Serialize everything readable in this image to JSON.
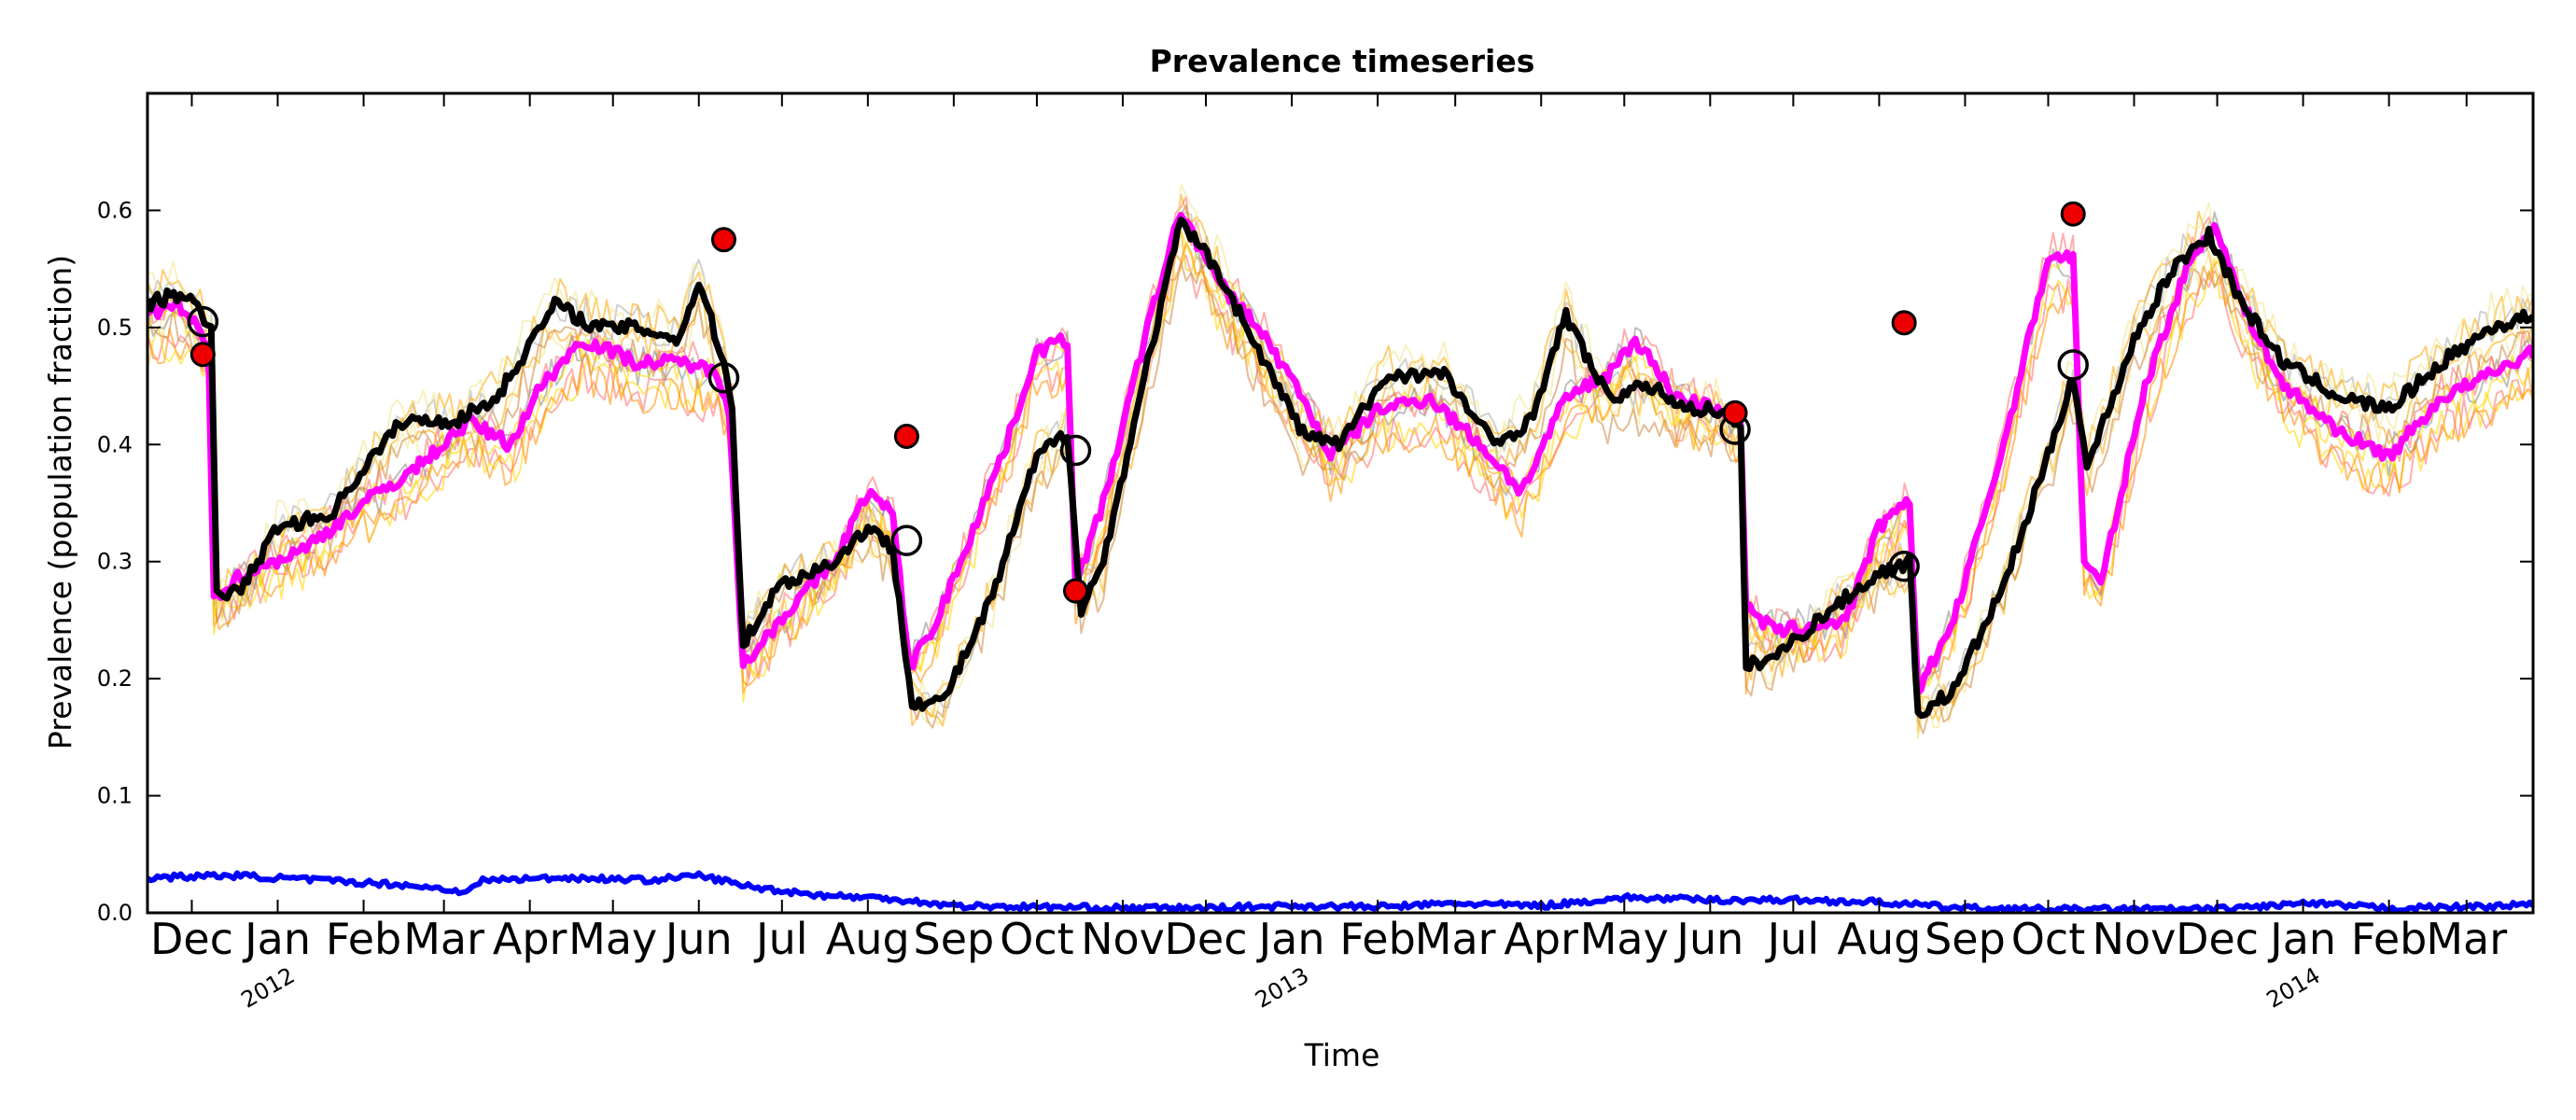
{
  "chart_data": {
    "type": "line",
    "title": "Prevalence timeseries",
    "xlabel": "Time",
    "ylabel": "Prevalence (population fraction)",
    "x_range": [
      "2011-11-15",
      "2014-03-25"
    ],
    "ylim": [
      0.0,
      0.7
    ],
    "y_ticks": [
      0.0,
      0.1,
      0.2,
      0.3,
      0.4,
      0.5,
      0.6
    ],
    "y_tick_labels": [
      "0.0",
      "0.1",
      "0.2",
      "0.3",
      "0.4",
      "0.5",
      "0.6"
    ],
    "month_ticks": [
      {
        "date": "2011-12-01",
        "label": "Dec"
      },
      {
        "date": "2012-01-01",
        "label": "Jan"
      },
      {
        "date": "2012-02-01",
        "label": "Feb"
      },
      {
        "date": "2012-03-01",
        "label": "Mar"
      },
      {
        "date": "2012-04-01",
        "label": "Apr"
      },
      {
        "date": "2012-05-01",
        "label": "May"
      },
      {
        "date": "2012-06-01",
        "label": "Jun"
      },
      {
        "date": "2012-07-01",
        "label": "Jul"
      },
      {
        "date": "2012-08-01",
        "label": "Aug"
      },
      {
        "date": "2012-09-01",
        "label": "Sep"
      },
      {
        "date": "2012-10-01",
        "label": "Oct"
      },
      {
        "date": "2012-11-01",
        "label": "Nov"
      },
      {
        "date": "2012-12-01",
        "label": "Dec"
      },
      {
        "date": "2013-01-01",
        "label": "Jan"
      },
      {
        "date": "2013-02-01",
        "label": "Feb"
      },
      {
        "date": "2013-03-01",
        "label": "Mar"
      },
      {
        "date": "2013-04-01",
        "label": "Apr"
      },
      {
        "date": "2013-05-01",
        "label": "May"
      },
      {
        "date": "2013-06-01",
        "label": "Jun"
      },
      {
        "date": "2013-07-01",
        "label": "Jul"
      },
      {
        "date": "2013-08-01",
        "label": "Aug"
      },
      {
        "date": "2013-09-01",
        "label": "Sep"
      },
      {
        "date": "2013-10-01",
        "label": "Oct"
      },
      {
        "date": "2013-11-01",
        "label": "Nov"
      },
      {
        "date": "2013-12-01",
        "label": "Dec"
      },
      {
        "date": "2014-01-01",
        "label": "Jan"
      },
      {
        "date": "2014-02-01",
        "label": "Feb"
      },
      {
        "date": "2014-03-01",
        "label": "Mar"
      }
    ],
    "year_ticks": [
      {
        "date": "2012-01-01",
        "label": "2012"
      },
      {
        "date": "2013-01-01",
        "label": "2013"
      },
      {
        "date": "2014-01-01",
        "label": "2014"
      }
    ],
    "grid": false,
    "legend": "none",
    "series": [
      {
        "role": "magenta",
        "color": "#ff00ff",
        "points": [
          [
            "2011-11-15",
            0.51
          ],
          [
            "2011-11-25",
            0.52
          ],
          [
            "2011-12-03",
            0.5
          ],
          [
            "2011-12-07",
            0.48
          ],
          [
            "2011-12-09",
            0.27
          ],
          [
            "2011-12-20",
            0.29
          ],
          [
            "2012-01-10",
            0.31
          ],
          [
            "2012-02-01",
            0.35
          ],
          [
            "2012-02-20",
            0.38
          ],
          [
            "2012-03-10",
            0.42
          ],
          [
            "2012-03-25",
            0.4
          ],
          [
            "2012-04-05",
            0.45
          ],
          [
            "2012-04-20",
            0.49
          ],
          [
            "2012-05-10",
            0.47
          ],
          [
            "2012-05-28",
            0.47
          ],
          [
            "2012-06-08",
            0.46
          ],
          [
            "2012-06-12",
            0.43
          ],
          [
            "2012-06-17",
            0.21
          ],
          [
            "2012-06-30",
            0.25
          ],
          [
            "2012-07-20",
            0.3
          ],
          [
            "2012-08-01",
            0.36
          ],
          [
            "2012-08-10",
            0.34
          ],
          [
            "2012-08-16",
            0.21
          ],
          [
            "2012-08-26",
            0.25
          ],
          [
            "2012-09-20",
            0.4
          ],
          [
            "2012-10-01",
            0.48
          ],
          [
            "2012-10-12",
            0.49
          ],
          [
            "2012-10-15",
            0.28
          ],
          [
            "2012-10-25",
            0.35
          ],
          [
            "2012-11-10",
            0.5
          ],
          [
            "2012-11-22",
            0.6
          ],
          [
            "2012-12-05",
            0.54
          ],
          [
            "2012-12-20",
            0.5
          ],
          [
            "2013-01-05",
            0.44
          ],
          [
            "2013-01-15",
            0.39
          ],
          [
            "2013-02-01",
            0.43
          ],
          [
            "2013-02-20",
            0.44
          ],
          [
            "2013-03-10",
            0.4
          ],
          [
            "2013-03-25",
            0.36
          ],
          [
            "2013-04-10",
            0.44
          ],
          [
            "2013-04-25",
            0.46
          ],
          [
            "2013-05-05",
            0.49
          ],
          [
            "2013-05-20",
            0.44
          ],
          [
            "2013-06-05",
            0.43
          ],
          [
            "2013-06-12",
            0.42
          ],
          [
            "2013-06-14",
            0.26
          ],
          [
            "2013-06-25",
            0.24
          ],
          [
            "2013-07-20",
            0.25
          ],
          [
            "2013-08-01",
            0.33
          ],
          [
            "2013-08-12",
            0.35
          ],
          [
            "2013-08-15",
            0.19
          ],
          [
            "2013-08-28",
            0.25
          ],
          [
            "2013-09-15",
            0.4
          ],
          [
            "2013-10-01",
            0.56
          ],
          [
            "2013-10-10",
            0.56
          ],
          [
            "2013-10-14",
            0.3
          ],
          [
            "2013-10-20",
            0.28
          ],
          [
            "2013-11-05",
            0.45
          ],
          [
            "2013-11-20",
            0.55
          ],
          [
            "2013-11-30",
            0.59
          ],
          [
            "2013-12-10",
            0.52
          ],
          [
            "2013-12-25",
            0.45
          ],
          [
            "2014-01-15",
            0.41
          ],
          [
            "2014-02-01",
            0.39
          ],
          [
            "2014-02-20",
            0.44
          ],
          [
            "2014-03-10",
            0.46
          ],
          [
            "2014-03-25",
            0.48
          ]
        ]
      },
      {
        "role": "black",
        "color": "#000000",
        "points": [
          [
            "2011-11-15",
            0.52
          ],
          [
            "2011-11-28",
            0.53
          ],
          [
            "2011-12-08",
            0.5
          ],
          [
            "2011-12-10",
            0.27
          ],
          [
            "2011-12-20",
            0.28
          ],
          [
            "2012-01-01",
            0.33
          ],
          [
            "2012-01-20",
            0.34
          ],
          [
            "2012-02-01",
            0.38
          ],
          [
            "2012-02-15",
            0.42
          ],
          [
            "2012-03-05",
            0.42
          ],
          [
            "2012-03-20",
            0.44
          ],
          [
            "2012-04-10",
            0.52
          ],
          [
            "2012-04-25",
            0.5
          ],
          [
            "2012-05-10",
            0.5
          ],
          [
            "2012-05-25",
            0.49
          ],
          [
            "2012-06-01",
            0.54
          ],
          [
            "2012-06-10",
            0.47
          ],
          [
            "2012-06-13",
            0.43
          ],
          [
            "2012-06-17",
            0.23
          ],
          [
            "2012-06-30",
            0.28
          ],
          [
            "2012-07-20",
            0.3
          ],
          [
            "2012-08-01",
            0.33
          ],
          [
            "2012-08-10",
            0.31
          ],
          [
            "2012-08-17",
            0.18
          ],
          [
            "2012-08-28",
            0.18
          ],
          [
            "2012-09-15",
            0.27
          ],
          [
            "2012-10-01",
            0.39
          ],
          [
            "2012-10-12",
            0.41
          ],
          [
            "2012-10-17",
            0.26
          ],
          [
            "2012-10-25",
            0.3
          ],
          [
            "2012-11-10",
            0.47
          ],
          [
            "2012-11-22",
            0.59
          ],
          [
            "2012-12-05",
            0.55
          ],
          [
            "2012-12-20",
            0.48
          ],
          [
            "2013-01-05",
            0.41
          ],
          [
            "2013-01-18",
            0.4
          ],
          [
            "2013-02-05",
            0.46
          ],
          [
            "2013-02-25",
            0.46
          ],
          [
            "2013-03-15",
            0.4
          ],
          [
            "2013-03-28",
            0.42
          ],
          [
            "2013-04-10",
            0.51
          ],
          [
            "2013-04-25",
            0.44
          ],
          [
            "2013-05-10",
            0.45
          ],
          [
            "2013-05-25",
            0.43
          ],
          [
            "2013-06-05",
            0.43
          ],
          [
            "2013-06-12",
            0.41
          ],
          [
            "2013-06-14",
            0.21
          ],
          [
            "2013-06-25",
            0.22
          ],
          [
            "2013-07-15",
            0.26
          ],
          [
            "2013-08-01",
            0.29
          ],
          [
            "2013-08-12",
            0.3
          ],
          [
            "2013-08-15",
            0.17
          ],
          [
            "2013-08-28",
            0.19
          ],
          [
            "2013-09-15",
            0.28
          ],
          [
            "2013-10-01",
            0.39
          ],
          [
            "2013-10-10",
            0.46
          ],
          [
            "2013-10-15",
            0.38
          ],
          [
            "2013-11-01",
            0.49
          ],
          [
            "2013-11-15",
            0.55
          ],
          [
            "2013-11-28",
            0.58
          ],
          [
            "2013-12-10",
            0.52
          ],
          [
            "2013-12-25",
            0.47
          ],
          [
            "2014-01-15",
            0.44
          ],
          [
            "2014-02-01",
            0.43
          ],
          [
            "2014-02-20",
            0.47
          ],
          [
            "2014-03-10",
            0.5
          ],
          [
            "2014-03-25",
            0.51
          ]
        ]
      },
      {
        "role": "blue",
        "color": "#0000ff",
        "points": [
          [
            "2011-11-15",
            0.03
          ],
          [
            "2011-12-15",
            0.032
          ],
          [
            "2012-01-15",
            0.028
          ],
          [
            "2012-02-15",
            0.024
          ],
          [
            "2012-03-10",
            0.018
          ],
          [
            "2012-03-15",
            0.028
          ],
          [
            "2012-04-15",
            0.03
          ],
          [
            "2012-05-15",
            0.028
          ],
          [
            "2012-06-01",
            0.032
          ],
          [
            "2012-06-20",
            0.022
          ],
          [
            "2012-07-15",
            0.015
          ],
          [
            "2012-08-10",
            0.012
          ],
          [
            "2012-09-01",
            0.006
          ],
          [
            "2012-10-01",
            0.005
          ],
          [
            "2012-11-01",
            0.004
          ],
          [
            "2012-12-01",
            0.004
          ],
          [
            "2013-01-01",
            0.006
          ],
          [
            "2013-02-01",
            0.005
          ],
          [
            "2013-03-01",
            0.008
          ],
          [
            "2013-04-01",
            0.006
          ],
          [
            "2013-05-01",
            0.013
          ],
          [
            "2013-06-01",
            0.011
          ],
          [
            "2013-07-01",
            0.011
          ],
          [
            "2013-08-01",
            0.009
          ],
          [
            "2013-09-01",
            0.004
          ],
          [
            "2013-10-01",
            0.003
          ],
          [
            "2013-11-01",
            0.003
          ],
          [
            "2013-12-01",
            0.003
          ],
          [
            "2014-01-01",
            0.008
          ],
          [
            "2014-02-01",
            0.004
          ],
          [
            "2014-03-01",
            0.005
          ],
          [
            "2014-03-25",
            0.007
          ]
        ]
      }
    ],
    "ensemble": {
      "colors": [
        "#ff6e6e",
        "#ffa500",
        "#ffd700",
        "#f0e68c",
        "#888888",
        "#cd853f",
        "#ff8c00",
        "#a9a9a9"
      ],
      "count": 12
    },
    "markers_red": [
      {
        "date": "2011-12-05",
        "value": 0.477
      },
      {
        "date": "2012-06-10",
        "value": 0.575
      },
      {
        "date": "2012-08-15",
        "value": 0.407
      },
      {
        "date": "2012-10-15",
        "value": 0.275
      },
      {
        "date": "2013-06-10",
        "value": 0.427
      },
      {
        "date": "2013-08-10",
        "value": 0.504
      },
      {
        "date": "2013-10-10",
        "value": 0.597
      }
    ],
    "markers_open": [
      {
        "date": "2011-12-05",
        "value": 0.505
      },
      {
        "date": "2012-06-10",
        "value": 0.457
      },
      {
        "date": "2012-08-15",
        "value": 0.318
      },
      {
        "date": "2012-10-15",
        "value": 0.395
      },
      {
        "date": "2013-06-10",
        "value": 0.413
      },
      {
        "date": "2013-08-10",
        "value": 0.296
      },
      {
        "date": "2013-10-10",
        "value": 0.468
      }
    ]
  }
}
